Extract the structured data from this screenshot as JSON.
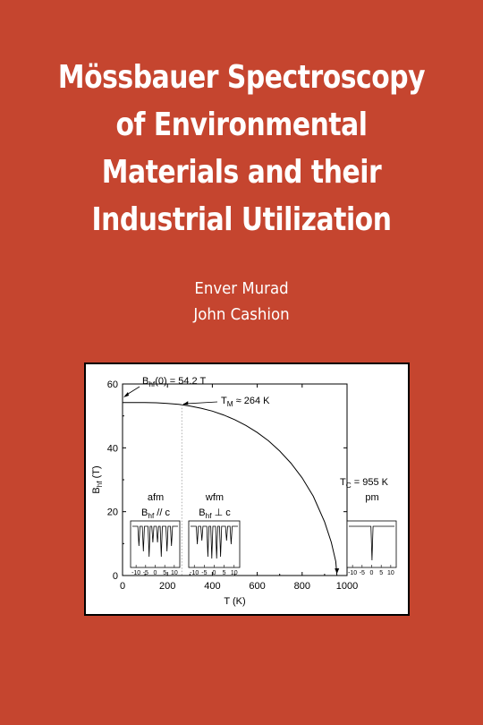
{
  "cover": {
    "background_color": "#c5452f",
    "title_lines": [
      "Mössbauer Spectroscopy",
      "of Environmental",
      "Materials and their",
      "Industrial Utilization"
    ],
    "authors": [
      "Enver Murad",
      "John Cashion"
    ]
  },
  "chart_data": {
    "type": "line",
    "xlabel": "T (K)",
    "ylabel": "B",
    "ylabel_sub": "hf",
    "ylabel_unit": " (T)",
    "xlim": [
      0,
      1000
    ],
    "ylim": [
      0,
      60
    ],
    "xticks": [
      0,
      200,
      400,
      600,
      800,
      1000
    ],
    "yticks": [
      0,
      20,
      40,
      60
    ],
    "grid": false,
    "series": [
      {
        "x": [
          0,
          50,
          100,
          150,
          200,
          250,
          264,
          300,
          350,
          400,
          450,
          500,
          550,
          600,
          650,
          700,
          750,
          800,
          850,
          900,
          930,
          950,
          955
        ],
        "y": [
          54.2,
          54.2,
          54.2,
          54.1,
          53.9,
          53.6,
          53.5,
          53.1,
          52.4,
          51.5,
          50.3,
          48.8,
          47.0,
          44.8,
          42.2,
          39.0,
          35.2,
          30.6,
          24.8,
          16.8,
          10.4,
          4.4,
          0
        ]
      }
    ],
    "annotations": {
      "bhf0": {
        "base": "B",
        "sub": "hf",
        "rest": "(0) = 54.2 T"
      },
      "tm": {
        "base": "T",
        "sub": "M",
        "rest": " ≈ 264 K"
      },
      "tc": {
        "base": "T",
        "sub": "C",
        "rest": " = 955 K"
      },
      "tm_marker_x": 264,
      "tc_marker_x": 955
    },
    "insets": [
      {
        "label": "afm",
        "sublabel_base": "B",
        "sublabel_sub": "hf",
        "sublabel_rest": " // c",
        "ticks": [
          "-10",
          "-5",
          "0",
          "5",
          "10"
        ],
        "lines": [
          -8.5,
          -6.2,
          -3.2,
          -1.2,
          1.2,
          3.2,
          6.2,
          8.5
        ],
        "depths": [
          0.55,
          0.7,
          0.85,
          0.45,
          0.45,
          0.85,
          0.7,
          0.55
        ]
      },
      {
        "label": "wfm",
        "sublabel_base": "B",
        "sublabel_sub": "hf",
        "sublabel_rest": " ⊥ c",
        "ticks": [
          "-10",
          "-5",
          "0",
          "5",
          "10"
        ],
        "lines": [
          -8.5,
          -6.2,
          -3.2,
          -1.2,
          1.2,
          3.2,
          6.2,
          8.5
        ],
        "depths": [
          0.5,
          0.4,
          0.85,
          0.9,
          0.9,
          0.85,
          0.4,
          0.5
        ]
      },
      {
        "label": "pm",
        "sublabel_base": "",
        "sublabel_sub": "",
        "sublabel_rest": "",
        "ticks": [
          "-10",
          "-5",
          "0",
          "5",
          "10"
        ],
        "lines": [
          0.2
        ],
        "depths": [
          0.95
        ]
      }
    ]
  }
}
